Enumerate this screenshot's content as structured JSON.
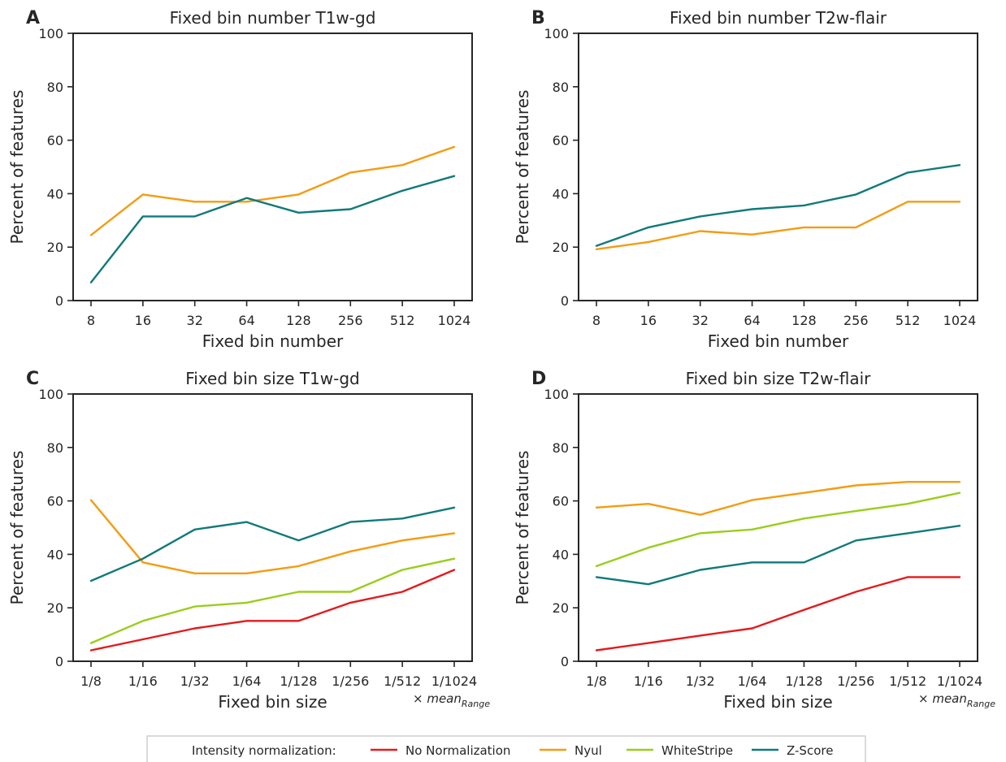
{
  "colors": {
    "no_normalization": "#e41a1c",
    "nyul": "#f39c12",
    "whitestripe": "#9acd1c",
    "zscore": "#117a7a"
  },
  "legend": {
    "title": "Intensity normalization:",
    "entries": [
      {
        "key": "no_normalization",
        "label": "No Normalization"
      },
      {
        "key": "nyul",
        "label": "Nyul"
      },
      {
        "key": "whitestripe",
        "label": "WhiteStripe"
      },
      {
        "key": "zscore",
        "label": "Z-Score"
      }
    ]
  },
  "chart_data": [
    {
      "letter": "A",
      "type": "line",
      "title": "Fixed bin number T1w-gd",
      "xlabel": "Fixed bin number",
      "ylabel": "Percent of features",
      "ylim": [
        0,
        100
      ],
      "yticks": [
        "0",
        "20",
        "40",
        "60",
        "80",
        "100"
      ],
      "categories": [
        "8",
        "16",
        "32",
        "64",
        "128",
        "256",
        "512",
        "1024"
      ],
      "series": [
        {
          "key": "nyul",
          "values": [
            24.5,
            39.7,
            37.0,
            37.0,
            39.7,
            47.9,
            50.7,
            57.5
          ]
        },
        {
          "key": "zscore",
          "values": [
            6.8,
            31.5,
            31.5,
            38.4,
            32.9,
            34.2,
            41.1,
            46.6
          ]
        }
      ]
    },
    {
      "letter": "B",
      "type": "line",
      "title": "Fixed bin number T2w-flair",
      "xlabel": "Fixed bin number",
      "ylabel": "Percent of features",
      "ylim": [
        0,
        100
      ],
      "yticks": [
        "0",
        "20",
        "40",
        "60",
        "80",
        "100"
      ],
      "categories": [
        "8",
        "16",
        "32",
        "64",
        "128",
        "256",
        "512",
        "1024"
      ],
      "series": [
        {
          "key": "nyul",
          "values": [
            19.2,
            21.9,
            26.0,
            24.7,
            27.4,
            27.4,
            37.0,
            37.0
          ]
        },
        {
          "key": "zscore",
          "values": [
            20.5,
            27.4,
            31.5,
            34.2,
            35.6,
            39.7,
            47.9,
            50.7
          ]
        }
      ]
    },
    {
      "letter": "C",
      "type": "line",
      "title": "Fixed bin size T1w-gd",
      "xlabel": "Fixed bin size",
      "ylabel": "Percent of features",
      "unit_note": "× mean",
      "unit_note_sub": "Range",
      "ylim": [
        0,
        100
      ],
      "yticks": [
        "0",
        "20",
        "40",
        "60",
        "80",
        "100"
      ],
      "categories": [
        "1/8",
        "1/16",
        "1/32",
        "1/64",
        "1/128",
        "1/256",
        "1/512",
        "1/1024"
      ],
      "series": [
        {
          "key": "no_normalization",
          "values": [
            4.1,
            8.2,
            12.3,
            15.1,
            15.1,
            21.9,
            26.0,
            34.2
          ]
        },
        {
          "key": "nyul",
          "values": [
            60.3,
            37.0,
            32.9,
            32.9,
            35.6,
            41.1,
            45.2,
            47.9
          ]
        },
        {
          "key": "whitestripe",
          "values": [
            6.8,
            15.1,
            20.5,
            21.9,
            26.0,
            26.0,
            34.2,
            38.4
          ]
        },
        {
          "key": "zscore",
          "values": [
            30.1,
            38.4,
            49.3,
            52.1,
            45.2,
            52.1,
            53.4,
            57.5
          ]
        }
      ]
    },
    {
      "letter": "D",
      "type": "line",
      "title": "Fixed bin size T2w-flair",
      "xlabel": "Fixed bin size",
      "ylabel": "Percent of features",
      "unit_note": "× mean",
      "unit_note_sub": "Range",
      "ylim": [
        0,
        100
      ],
      "yticks": [
        "0",
        "20",
        "40",
        "60",
        "80",
        "100"
      ],
      "categories": [
        "1/8",
        "1/16",
        "1/32",
        "1/64",
        "1/128",
        "1/256",
        "1/512",
        "1/1024"
      ],
      "series": [
        {
          "key": "no_normalization",
          "values": [
            4.1,
            6.8,
            9.6,
            12.3,
            19.2,
            26.0,
            31.5,
            31.5
          ]
        },
        {
          "key": "nyul",
          "values": [
            57.5,
            58.9,
            54.8,
            60.3,
            63.0,
            65.8,
            67.1,
            67.1
          ]
        },
        {
          "key": "whitestripe",
          "values": [
            35.6,
            42.5,
            47.9,
            49.3,
            53.4,
            56.2,
            58.9,
            63.0
          ]
        },
        {
          "key": "zscore",
          "values": [
            31.5,
            28.8,
            34.2,
            37.0,
            37.0,
            45.2,
            47.9,
            50.7
          ]
        }
      ]
    }
  ]
}
